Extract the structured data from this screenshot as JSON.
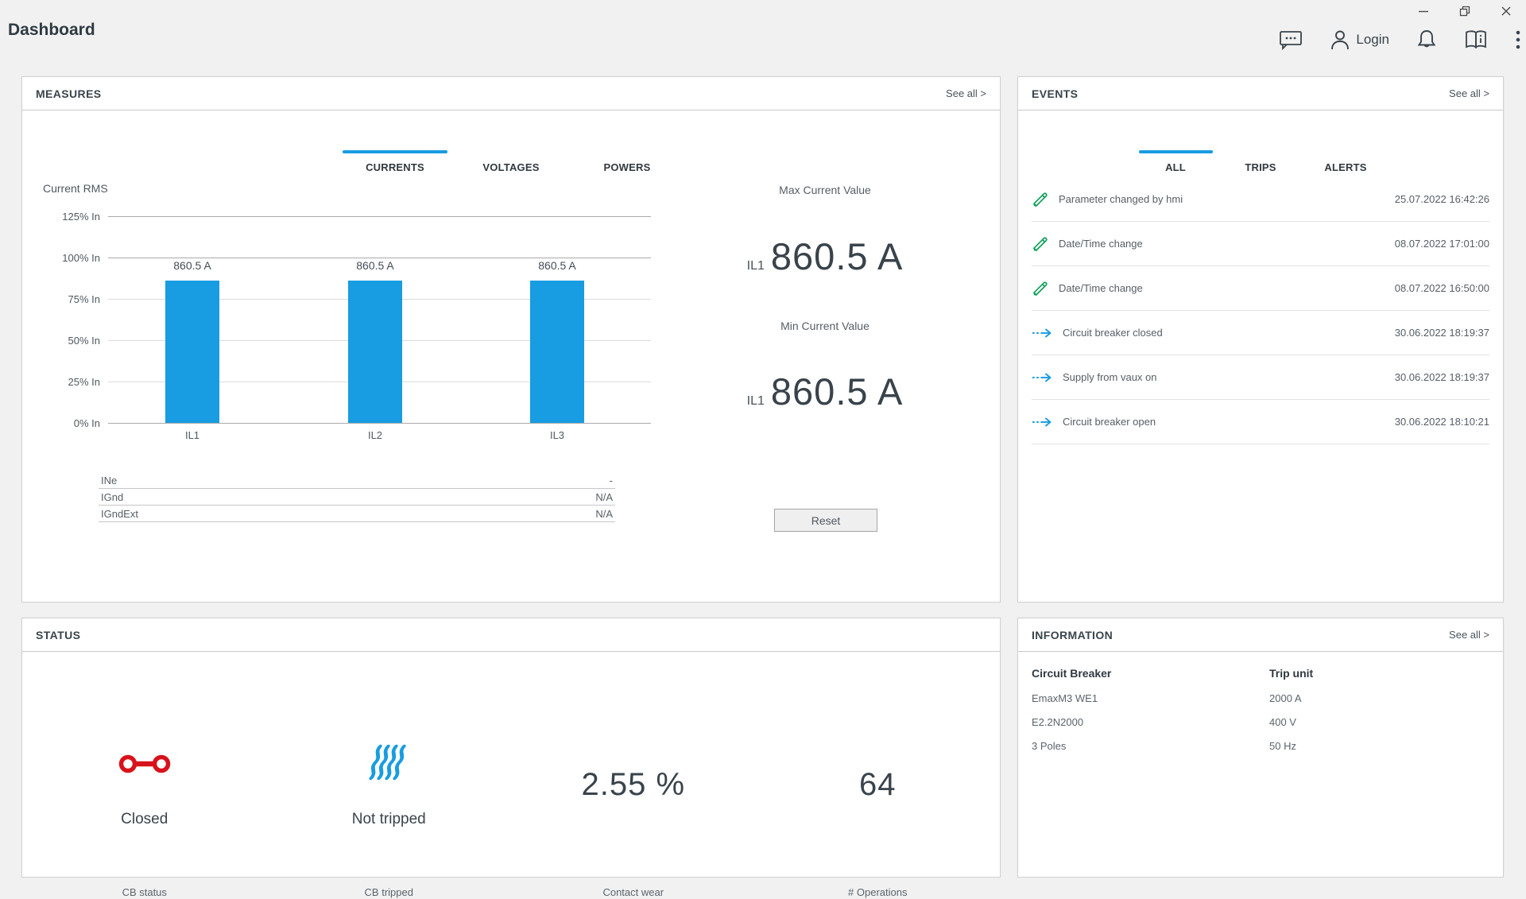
{
  "accent": "#189ce2",
  "green": "#10a05a",
  "red": "#d8121b",
  "window": {
    "title": "Dashboard",
    "controls": [
      {
        "name": "minimize-button"
      },
      {
        "name": "restore-button"
      },
      {
        "name": "close-button"
      }
    ]
  },
  "topbar": {
    "login_label": "Login",
    "icons": [
      "chat-icon",
      "user-icon",
      "bell-icon",
      "manual-icon",
      "kebab-menu-icon"
    ]
  },
  "measures": {
    "title": "MEASURES",
    "see_all": "See all >",
    "tabs": [
      {
        "label": "CURRENTS",
        "active": true
      },
      {
        "label": "VOLTAGES",
        "active": false
      },
      {
        "label": "POWERS",
        "active": false
      }
    ],
    "chart_data": {
      "type": "bar",
      "title": "Current RMS",
      "categories": [
        "IL1",
        "IL2",
        "IL3"
      ],
      "values": [
        860.5,
        860.5,
        860.5
      ],
      "value_labels": [
        "860.5 A",
        "860.5 A",
        "860.5 A"
      ],
      "unit": "A",
      "ylabel": "% In",
      "ytick_labels": [
        "125% In",
        "100% In",
        "75% In",
        "50% In",
        "25% In",
        "0% In"
      ],
      "ylim_percent": [
        0,
        125
      ],
      "bar_percent": [
        86.05,
        86.05,
        86.05
      ],
      "grid": true,
      "bar_color": "#189ce2"
    },
    "extra_rows": [
      {
        "label": "INe",
        "value": "-"
      },
      {
        "label": "IGnd",
        "value": "N/A"
      },
      {
        "label": "IGndExt",
        "value": "N/A"
      }
    ],
    "max_value": {
      "label": "Max Current Value",
      "phase": "IL1",
      "value": "860.5 A"
    },
    "min_value": {
      "label": "Min Current Value",
      "phase": "IL1",
      "value": "860.5 A"
    },
    "reset_label": "Reset"
  },
  "events": {
    "title": "EVENTS",
    "see_all": "See all >",
    "tabs": [
      {
        "label": "ALL",
        "active": true
      },
      {
        "label": "TRIPS",
        "active": false
      },
      {
        "label": "ALERTS",
        "active": false
      }
    ],
    "rows": [
      {
        "icon": "pencil-icon",
        "text": "Parameter changed by hmi",
        "timestamp": "25.07.2022 16:42:26"
      },
      {
        "icon": "pencil-icon",
        "text": "Date/Time change",
        "timestamp": "08.07.2022 17:01:00"
      },
      {
        "icon": "pencil-icon",
        "text": "Date/Time change",
        "timestamp": "08.07.2022 16:50:00"
      },
      {
        "icon": "event-arrow-icon",
        "text": "Circuit breaker closed",
        "timestamp": "30.06.2022 18:19:37"
      },
      {
        "icon": "event-arrow-icon",
        "text": "Supply from vaux on",
        "timestamp": "30.06.2022 18:19:37"
      },
      {
        "icon": "event-arrow-icon",
        "text": "Circuit breaker open",
        "timestamp": "30.06.2022 18:10:21"
      }
    ]
  },
  "status": {
    "title": "STATUS",
    "items": [
      {
        "kind": "icon",
        "icon": "cb-closed-icon",
        "value": "Closed",
        "label": "CB status"
      },
      {
        "kind": "icon",
        "icon": "cb-not-tripped-icon",
        "value": "Not tripped",
        "label": "CB tripped"
      },
      {
        "kind": "value",
        "value": "2.55 %",
        "label": "Contact wear"
      },
      {
        "kind": "value",
        "value": "64",
        "label": "# Operations"
      }
    ]
  },
  "information": {
    "title": "INFORMATION",
    "see_all": "See all >",
    "columns": [
      {
        "header": "Circuit Breaker",
        "rows": [
          "EmaxM3 WE1",
          "E2.2N2000",
          "3 Poles"
        ]
      },
      {
        "header": "Trip unit",
        "rows": [
          "2000 A",
          "400 V",
          "50 Hz"
        ]
      }
    ]
  }
}
